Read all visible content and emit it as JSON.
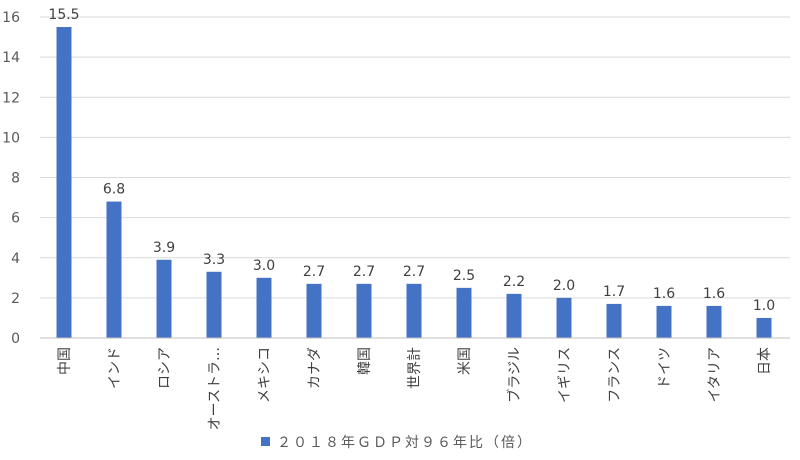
{
  "chart_data": {
    "type": "bar",
    "categories": [
      "中国",
      "インド",
      "ロシア",
      "オーストラ…",
      "メキシコ",
      "カナダ",
      "韓国",
      "世界計",
      "米国",
      "ブラジル",
      "イギリス",
      "フランス",
      "ドイツ",
      "イタリア",
      "日本"
    ],
    "series": [
      {
        "name": "２０１８年ＧＤＰ対９６年比（倍）",
        "values": [
          15.5,
          6.8,
          3.9,
          3.3,
          3.0,
          2.7,
          2.7,
          2.7,
          2.5,
          2.2,
          2.0,
          1.7,
          1.6,
          1.6,
          1.0
        ],
        "labels": [
          "15.5",
          "6.8",
          "3.9",
          "3.3",
          "3.0",
          "2.7",
          "2.7",
          "2.7",
          "2.5",
          "2.2",
          "2.0",
          "1.7",
          "1.6",
          "1.6",
          "1.0"
        ],
        "color": "#4472c4"
      }
    ],
    "yticks": [
      "0",
      "2",
      "4",
      "6",
      "8",
      "10",
      "12",
      "14",
      "16"
    ],
    "ylim": [
      0,
      16
    ],
    "grid": true,
    "legend_position": "bottom"
  }
}
